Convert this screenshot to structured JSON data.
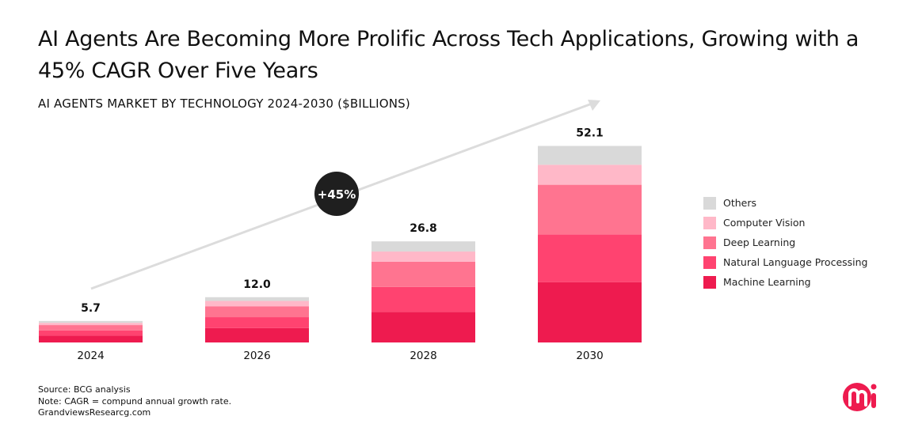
{
  "title": "AI Agents Are Becoming More Prolific Across Tech Applications, Growing with a 45% CAGR Over Five Years",
  "chart_data": {
    "type": "bar",
    "stacked": true,
    "subtitle": "AI AGENTS MARKET BY TECHNOLOGY 2024-2030 ($BILLIONS)",
    "categories": [
      "2024",
      "2026",
      "2028",
      "2030"
    ],
    "totals": [
      "5.7",
      "12.0",
      "26.8",
      "52.1"
    ],
    "series": [
      {
        "name": "Machine Learning",
        "color": "#ee1b4f",
        "values": [
          1.8,
          3.8,
          8.1,
          16.0
        ]
      },
      {
        "name": "Natural Language Processing",
        "color": "#ff4370",
        "values": [
          1.4,
          2.9,
          6.6,
          12.6
        ]
      },
      {
        "name": "Deep Learning",
        "color": "#ff7490",
        "values": [
          1.4,
          2.9,
          6.7,
          13.2
        ]
      },
      {
        "name": "Computer Vision",
        "color": "#ffb8c8",
        "values": [
          0.6,
          1.4,
          2.7,
          5.3
        ]
      },
      {
        "name": "Others",
        "color": "#d9d9d9",
        "values": [
          0.5,
          1.0,
          2.7,
          5.0
        ]
      }
    ],
    "annotation": "+45%",
    "legend_position": "right",
    "grid": false
  },
  "legend_order": [
    4,
    3,
    2,
    1,
    0
  ],
  "footer": {
    "source": "Source: BCG analysis",
    "note": "Note: CAGR = compund annual growth rate.",
    "site": "GrandviewsResearcg.com"
  },
  "logo": {
    "text": "mi",
    "color": "#ee1b4f"
  }
}
